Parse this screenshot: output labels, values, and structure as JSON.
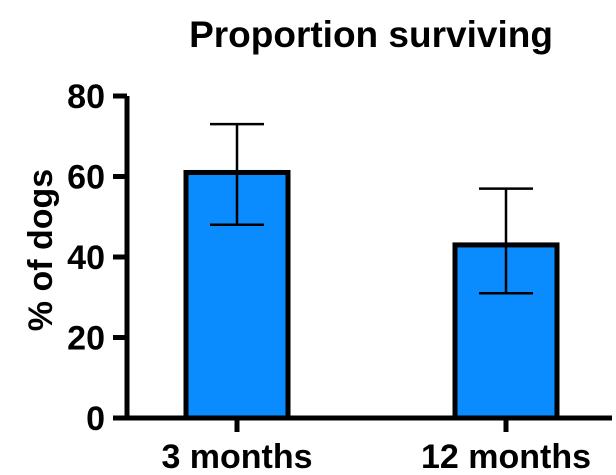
{
  "chart_data": {
    "type": "bar",
    "title": "Proportion surviving",
    "xlabel": "",
    "ylabel": "% of dogs",
    "categories": [
      "3 months",
      "12 months"
    ],
    "values": [
      61,
      43
    ],
    "error_bars": [
      {
        "low": 48,
        "high": 73
      },
      {
        "low": 31,
        "high": 57
      }
    ],
    "ylim": [
      0,
      80
    ],
    "yticks": [
      0,
      20,
      40,
      60,
      80
    ],
    "ytick_labels": [
      "0",
      "20",
      "40",
      "60",
      "80"
    ],
    "bar_color": "#0a8cff",
    "edge_color": "#000000",
    "grid": false,
    "legend": "none"
  }
}
